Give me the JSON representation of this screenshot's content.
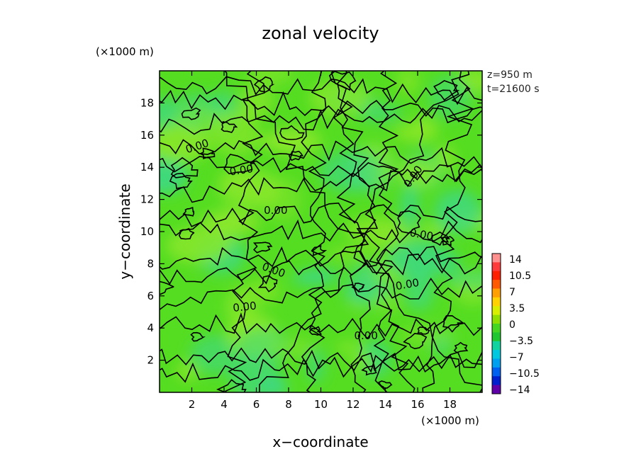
{
  "chart_data": {
    "type": "heatmap",
    "title": "zonal velocity",
    "xlabel": "x−coordinate",
    "ylabel": "y−coordinate",
    "x_unit": "(×1000 m)",
    "y_unit": "(×1000 m)",
    "xlim": [
      0,
      20
    ],
    "ylim": [
      0,
      20
    ],
    "x_ticks": [
      "2",
      "4",
      "6",
      "8",
      "10",
      "12",
      "14",
      "16",
      "18"
    ],
    "y_ticks": [
      "2",
      "4",
      "6",
      "8",
      "10",
      "12",
      "14",
      "16",
      "18"
    ],
    "info": [
      "z=950 m",
      "t=21600 s"
    ],
    "colorbar": {
      "levels": [
        "14",
        "10.5",
        "7",
        "3.5",
        "0",
        "−3.5",
        "−7",
        "−10.5",
        "−14"
      ],
      "range": [
        -14,
        14
      ]
    },
    "contour_labels": [
      "0.00",
      "0.00",
      "0.00",
      "0.00",
      "0.00",
      "0.00",
      "0.00",
      "0.00",
      "0.00"
    ],
    "colors": {
      "field_main": "#55dd22",
      "field_warm": "#8ee82a",
      "field_cool": "#3dd88a",
      "contour": "#000000"
    }
  }
}
